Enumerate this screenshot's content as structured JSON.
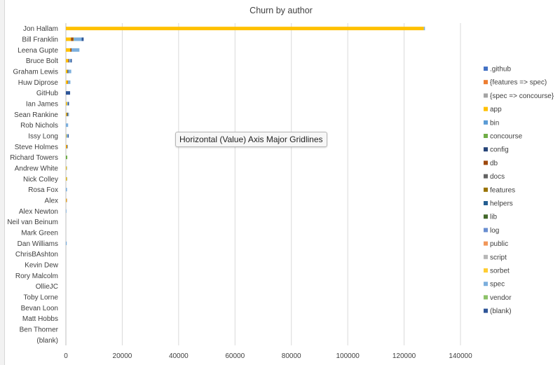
{
  "chart_data": {
    "type": "bar",
    "orientation": "horizontal",
    "stacked": true,
    "title": "Churn by author",
    "xlabel": "",
    "ylabel": "",
    "xlim": [
      0,
      140000
    ],
    "x_ticks": [
      0,
      20000,
      40000,
      60000,
      80000,
      100000,
      120000,
      140000
    ],
    "grid": true,
    "legend_position": "right",
    "categories": [
      "Jon Hallam",
      "Bill Franklin",
      "Leena Gupte",
      "Bruce Bolt",
      "Graham Lewis",
      "Huw Diprose",
      "GitHub",
      "Ian James",
      "Sean Rankine",
      "Rob Nichols",
      "Issy Long",
      "Steve Holmes",
      "Richard Towers",
      "Andrew White",
      "Nick Colley",
      "Rosa Fox",
      "Alex",
      "Alex Newton",
      "Neil van Beinum",
      "Mark Green",
      "Dan Williams",
      "ChrisBAshton",
      "Kevin Dew",
      "Rory Malcolm",
      "OllieJC",
      "Toby Lorne",
      "Bevan Loon",
      "Matt Hobbs",
      "Ben Thorner",
      "(blank)"
    ],
    "series": [
      {
        "name": ".github",
        "color": "#4472c4",
        "values": [
          0,
          0,
          0,
          0,
          0,
          0,
          0,
          0,
          0,
          0,
          0,
          0,
          0,
          0,
          0,
          0,
          0,
          0,
          0,
          0,
          0,
          0,
          0,
          0,
          0,
          0,
          0,
          0,
          0,
          0
        ]
      },
      {
        "name": "{features => spec)",
        "color": "#ed7d31",
        "values": [
          0,
          0,
          0,
          0,
          0,
          0,
          0,
          0,
          0,
          0,
          0,
          0,
          0,
          0,
          0,
          0,
          0,
          0,
          0,
          0,
          0,
          0,
          0,
          0,
          0,
          0,
          0,
          0,
          0,
          0
        ]
      },
      {
        "name": "{spec => concourse}",
        "color": "#a5a5a5",
        "values": [
          0,
          0,
          0,
          0,
          0,
          0,
          0,
          0,
          0,
          0,
          0,
          0,
          0,
          0,
          0,
          0,
          0,
          0,
          0,
          0,
          0,
          0,
          0,
          0,
          0,
          0,
          0,
          0,
          0,
          0
        ]
      },
      {
        "name": "app",
        "color": "#ffc000",
        "values": [
          127000,
          1800,
          1600,
          800,
          500,
          600,
          0,
          400,
          300,
          0,
          200,
          300,
          0,
          250,
          350,
          0,
          200,
          0,
          0,
          0,
          0,
          0,
          0,
          0,
          0,
          0,
          0,
          0,
          0,
          0
        ]
      },
      {
        "name": "bin",
        "color": "#5b9bd5",
        "values": [
          0,
          0,
          0,
          0,
          0,
          0,
          0,
          0,
          0,
          0,
          0,
          0,
          0,
          0,
          0,
          0,
          0,
          0,
          0,
          0,
          0,
          0,
          0,
          0,
          0,
          0,
          0,
          0,
          0,
          0
        ]
      },
      {
        "name": "concourse",
        "color": "#70ad47",
        "values": [
          0,
          0,
          0,
          0,
          0,
          0,
          0,
          0,
          0,
          0,
          0,
          0,
          500,
          0,
          0,
          0,
          0,
          0,
          0,
          0,
          0,
          0,
          0,
          0,
          0,
          0,
          0,
          0,
          0,
          0
        ]
      },
      {
        "name": "config",
        "color": "#264478",
        "values": [
          0,
          0,
          0,
          0,
          0,
          0,
          0,
          0,
          0,
          0,
          0,
          0,
          0,
          0,
          0,
          0,
          0,
          0,
          0,
          0,
          0,
          0,
          0,
          0,
          0,
          0,
          0,
          0,
          0,
          0
        ]
      },
      {
        "name": "db",
        "color": "#9e480e",
        "values": [
          0,
          700,
          400,
          300,
          0,
          200,
          0,
          0,
          0,
          0,
          0,
          200,
          0,
          0,
          0,
          0,
          150,
          0,
          0,
          0,
          0,
          0,
          0,
          0,
          0,
          0,
          0,
          0,
          0,
          0
        ]
      },
      {
        "name": "docs",
        "color": "#636363",
        "values": [
          0,
          0,
          0,
          0,
          400,
          0,
          0,
          0,
          500,
          0,
          0,
          0,
          0,
          0,
          0,
          0,
          0,
          0,
          0,
          0,
          0,
          0,
          0,
          0,
          0,
          0,
          0,
          0,
          0,
          0
        ]
      },
      {
        "name": "features",
        "color": "#997300",
        "values": [
          0,
          300,
          0,
          0,
          0,
          0,
          0,
          0,
          0,
          0,
          0,
          0,
          0,
          0,
          0,
          0,
          0,
          0,
          0,
          0,
          0,
          0,
          0,
          0,
          0,
          0,
          0,
          0,
          0,
          0
        ]
      },
      {
        "name": "helpers",
        "color": "#255e91",
        "values": [
          0,
          0,
          0,
          0,
          0,
          0,
          0,
          0,
          0,
          0,
          0,
          0,
          0,
          0,
          0,
          0,
          0,
          0,
          0,
          0,
          0,
          0,
          0,
          0,
          0,
          0,
          0,
          0,
          0,
          0
        ]
      },
      {
        "name": "lib",
        "color": "#43682b",
        "values": [
          0,
          0,
          0,
          0,
          0,
          0,
          0,
          0,
          0,
          0,
          0,
          0,
          0,
          0,
          0,
          0,
          0,
          0,
          0,
          0,
          0,
          0,
          0,
          0,
          0,
          0,
          0,
          0,
          0,
          0
        ]
      },
      {
        "name": "log",
        "color": "#698ed0",
        "values": [
          0,
          0,
          0,
          0,
          0,
          0,
          0,
          0,
          0,
          0,
          0,
          0,
          0,
          0,
          0,
          0,
          0,
          0,
          0,
          0,
          0,
          0,
          0,
          0,
          0,
          0,
          0,
          0,
          0,
          0
        ]
      },
      {
        "name": "public",
        "color": "#f1975a",
        "values": [
          0,
          0,
          0,
          0,
          0,
          0,
          0,
          0,
          0,
          0,
          0,
          0,
          0,
          0,
          0,
          0,
          0,
          0,
          0,
          0,
          0,
          0,
          0,
          0,
          0,
          0,
          0,
          0,
          0,
          0
        ]
      },
      {
        "name": "script",
        "color": "#b7b7b7",
        "values": [
          0,
          0,
          0,
          0,
          0,
          0,
          0,
          0,
          0,
          0,
          0,
          0,
          0,
          0,
          0,
          0,
          0,
          0,
          0,
          0,
          0,
          0,
          0,
          0,
          0,
          0,
          0,
          0,
          0,
          0
        ]
      },
      {
        "name": "sorbet",
        "color": "#ffcd33",
        "values": [
          0,
          0,
          0,
          0,
          0,
          0,
          0,
          0,
          0,
          0,
          0,
          0,
          0,
          0,
          0,
          0,
          0,
          0,
          0,
          0,
          0,
          0,
          0,
          0,
          0,
          0,
          0,
          0,
          0,
          0
        ]
      },
      {
        "name": "spec",
        "color": "#7cafdd",
        "values": [
          400,
          2800,
          2800,
          600,
          1000,
          800,
          0,
          300,
          300,
          800,
          500,
          200,
          0,
          100,
          150,
          400,
          0,
          200,
          0,
          0,
          300,
          0,
          0,
          0,
          0,
          0,
          0,
          0,
          0,
          0
        ]
      },
      {
        "name": "vendor",
        "color": "#8cc168",
        "values": [
          0,
          0,
          0,
          0,
          0,
          0,
          0,
          0,
          0,
          0,
          0,
          0,
          0,
          0,
          0,
          0,
          0,
          0,
          0,
          0,
          0,
          0,
          0,
          0,
          0,
          0,
          0,
          0,
          0,
          0
        ]
      },
      {
        "name": "(blank)",
        "color": "#2e5597",
        "values": [
          0,
          700,
          0,
          400,
          0,
          0,
          1500,
          400,
          0,
          0,
          300,
          0,
          0,
          0,
          0,
          0,
          0,
          0,
          0,
          0,
          0,
          0,
          0,
          0,
          0,
          0,
          0,
          0,
          0,
          0
        ]
      }
    ]
  },
  "tooltip": {
    "text": "Horizontal (Value) Axis Major Gridlines"
  }
}
